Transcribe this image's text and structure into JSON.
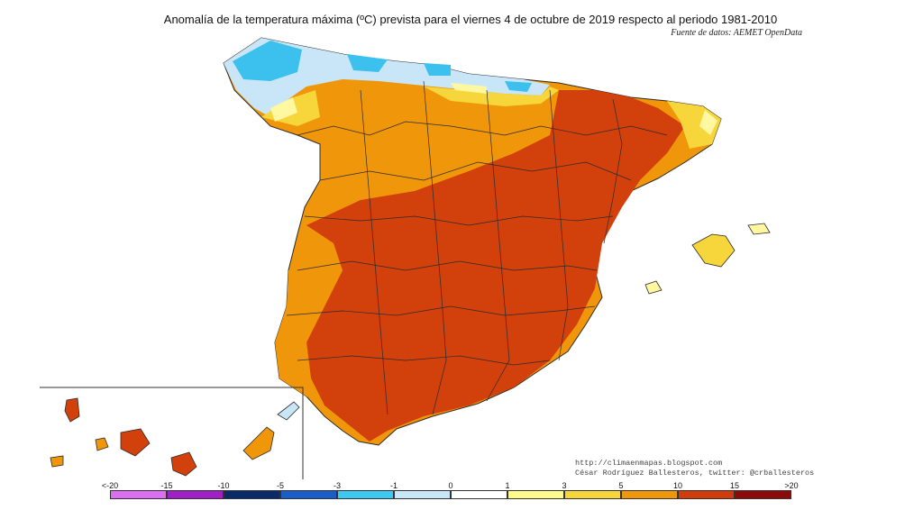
{
  "header": {
    "title": "Anomalía de la temperatura máxima (ºC) prevista para el viernes 4 de octubre de 2019 respecto al periodo 1981-2010",
    "source": "Fuente de datos: AEMET OpenData"
  },
  "credits": {
    "url": "http://climaenmapas.blogspot.com",
    "author": "César Rodríguez Ballesteros, twitter: @crballesteros"
  },
  "legend": {
    "ticks": [
      "<-20",
      "-15",
      "-10",
      "-5",
      "-3",
      "-1",
      "0",
      "1",
      "3",
      "5",
      "10",
      "15",
      ">20"
    ],
    "colors": [
      "#dc6ef0",
      "#a020c8",
      "#0a2a6a",
      "#1a5cc8",
      "#3cc8f0",
      "#c8e6f8",
      "#ffffff",
      "#fffa8c",
      "#f7d63c",
      "#f0960a",
      "#d23c0a",
      "#8c0a0a",
      "#5a3c0a"
    ]
  },
  "palette": {
    "border": "#2b2b2b",
    "very_hot": "#d2400c",
    "hot": "#f0960a",
    "warm": "#f7d63c",
    "mild": "#fff8a0",
    "cool": "#c8e6f8",
    "cold": "#3cc0ee"
  }
}
